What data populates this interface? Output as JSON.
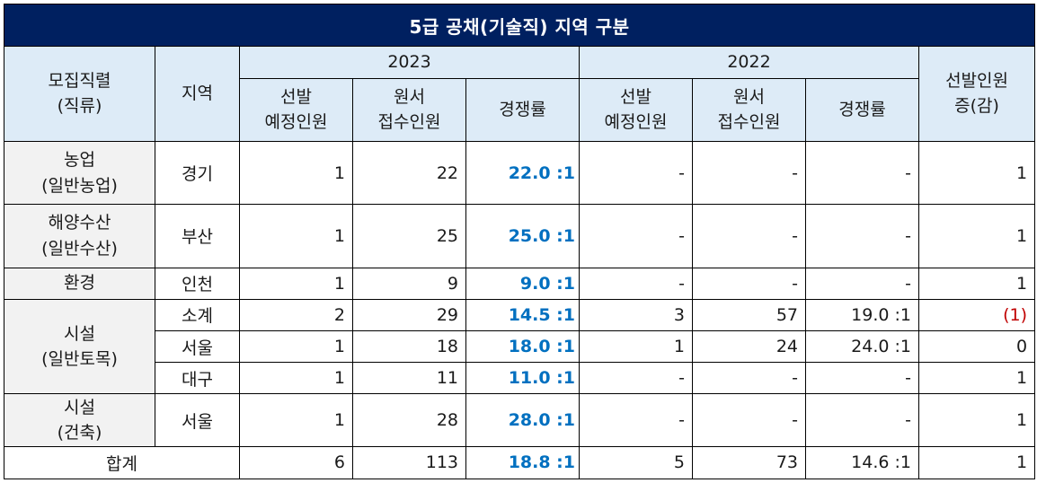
{
  "title": "5급 공채(기술직) 지역 구분",
  "header": {
    "col_field_line1": "모집직렬",
    "col_field_line2": "(직류)",
    "col_region": "지역",
    "year_a": "2023",
    "year_b": "2022",
    "planned_line1": "선발",
    "planned_line2": "예정인원",
    "applicants_line1": "원서",
    "applicants_line2": "접수인원",
    "rate": "경쟁률",
    "change_line1": "선발인원",
    "change_line2": "증(감)"
  },
  "rows": [
    {
      "cat_line1": "농업",
      "cat_line2": "(일반농업)",
      "region": "경기",
      "p23": "1",
      "a23": "22",
      "r23": "22.0 :1",
      "p22": "-",
      "a22": "-",
      "r22": "-",
      "chg": "1"
    },
    {
      "cat_line1": "해양수산",
      "cat_line2": "(일반수산)",
      "region": "부산",
      "p23": "1",
      "a23": "25",
      "r23": "25.0 :1",
      "p22": "-",
      "a22": "-",
      "r22": "-",
      "chg": "1"
    },
    {
      "cat_line1": "환경",
      "region": "인천",
      "p23": "1",
      "a23": "9",
      "r23": "9.0 :1",
      "p22": "-",
      "a22": "-",
      "r22": "-",
      "chg": "1"
    },
    {
      "cat_line1": "시설",
      "cat_line2": "(일반토목)",
      "region": "소계",
      "p23": "2",
      "a23": "29",
      "r23": "14.5 :1",
      "p22": "3",
      "a22": "57",
      "r22": "19.0 :1",
      "chg": "(1)"
    },
    {
      "region": "서울",
      "p23": "1",
      "a23": "18",
      "r23": "18.0 :1",
      "p22": "1",
      "a22": "24",
      "r22": "24.0 :1",
      "chg": "0"
    },
    {
      "region": "대구",
      "p23": "1",
      "a23": "11",
      "r23": "11.0 :1",
      "p22": "-",
      "a22": "-",
      "r22": "-",
      "chg": "1"
    },
    {
      "cat_line1": "시설",
      "cat_line2": "(건축)",
      "region": "서울",
      "p23": "1",
      "a23": "28",
      "r23": "28.0 :1",
      "p22": "-",
      "a22": "-",
      "r22": "-",
      "chg": "1"
    }
  ],
  "total": {
    "label": "합계",
    "p23": "6",
    "a23": "113",
    "r23": "18.8 :1",
    "p22": "5",
    "a22": "73",
    "r22": "14.6 :1",
    "chg": "1"
  },
  "colors": {
    "title_bg": "#002060",
    "header_bg": "#DDEBF7",
    "category_bg": "#F2F2F2",
    "rate_text": "#0070C0",
    "negative_text": "#C00000"
  }
}
